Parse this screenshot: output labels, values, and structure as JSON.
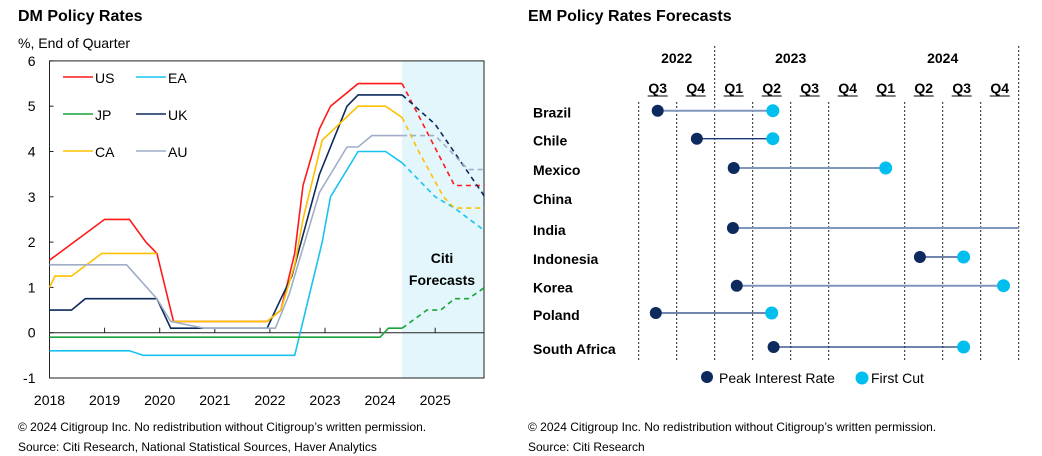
{
  "left": {
    "title": "DM Policy Rates",
    "unit_label": "%, End of Quarter",
    "forecast_label_1": "Citi",
    "forecast_label_2": "Forecasts",
    "copyright": "© 2024 Citigroup Inc. No redistribution without Citigroup’s written permission.",
    "source": "Source: Citi Research, National Statistical Sources, Haver Analytics"
  },
  "right": {
    "title": "EM Policy Rates Forecasts",
    "copyright": "© 2024 Citigroup Inc. No redistribution without Citigroup’s written permission.",
    "source": "Source: Citi Research"
  },
  "chart_data": [
    {
      "type": "line",
      "title": "DM Policy Rates",
      "ylabel": "%, End of Quarter",
      "xlim": [
        2018,
        2025.9
      ],
      "ylim": [
        -1,
        6
      ],
      "x_ticks": [
        "2018",
        "2019",
        "2020",
        "2021",
        "2022",
        "2023",
        "2024",
        "2025"
      ],
      "y_ticks": [
        "-1",
        "0",
        "1",
        "2",
        "3",
        "4",
        "5",
        "6"
      ],
      "forecast_start": 2024.4,
      "legend_position": "top-left",
      "series": [
        {
          "name": "US",
          "color": "#ff1a1a",
          "actual": [
            [
              2018,
              1.6
            ],
            [
              2019,
              2.5
            ],
            [
              2019.45,
              2.5
            ],
            [
              2019.75,
              2.0
            ],
            [
              2019.95,
              1.75
            ],
            [
              2020.25,
              0.25
            ],
            [
              2021.95,
              0.25
            ],
            [
              2022.2,
              0.5
            ],
            [
              2022.45,
              1.75
            ],
            [
              2022.6,
              3.25
            ],
            [
              2022.9,
              4.5
            ],
            [
              2023.1,
              5.0
            ],
            [
              2023.6,
              5.5
            ],
            [
              2024.4,
              5.5
            ]
          ],
          "forecast": [
            [
              2024.4,
              5.5
            ],
            [
              2025.35,
              3.25
            ],
            [
              2025.9,
              3.25
            ]
          ]
        },
        {
          "name": "EA",
          "color": "#19c3f0",
          "actual": [
            [
              2018,
              -0.4
            ],
            [
              2019.45,
              -0.4
            ],
            [
              2019.7,
              -0.5
            ],
            [
              2022.45,
              -0.5
            ],
            [
              2022.95,
              2.0
            ],
            [
              2023.1,
              3.0
            ],
            [
              2023.6,
              4.0
            ],
            [
              2024.1,
              4.0
            ],
            [
              2024.4,
              3.75
            ]
          ],
          "forecast": [
            [
              2024.4,
              3.75
            ],
            [
              2025.0,
              3.0
            ],
            [
              2025.35,
              2.75
            ],
            [
              2025.9,
              2.25
            ]
          ]
        },
        {
          "name": "JP",
          "color": "#1aa33a",
          "actual": [
            [
              2018,
              -0.1
            ],
            [
              2024.0,
              -0.1
            ],
            [
              2024.15,
              0.1
            ],
            [
              2024.4,
              0.1
            ]
          ],
          "forecast": [
            [
              2024.4,
              0.1
            ],
            [
              2024.85,
              0.5
            ],
            [
              2025.1,
              0.5
            ],
            [
              2025.35,
              0.75
            ],
            [
              2025.6,
              0.75
            ],
            [
              2025.9,
              1.0
            ]
          ]
        },
        {
          "name": "UK",
          "color": "#0d2a5e",
          "actual": [
            [
              2018,
              0.5
            ],
            [
              2018.4,
              0.5
            ],
            [
              2018.65,
              0.75
            ],
            [
              2019.95,
              0.75
            ],
            [
              2020.2,
              0.1
            ],
            [
              2021.95,
              0.1
            ],
            [
              2022.2,
              0.75
            ],
            [
              2022.4,
              1.25
            ],
            [
              2022.9,
              3.5
            ],
            [
              2023.4,
              5.0
            ],
            [
              2023.6,
              5.25
            ],
            [
              2024.4,
              5.25
            ]
          ],
          "forecast": [
            [
              2024.4,
              5.25
            ],
            [
              2025.0,
              4.6
            ],
            [
              2025.9,
              3.0
            ]
          ]
        },
        {
          "name": "CA",
          "color": "#ffc000",
          "actual": [
            [
              2018,
              1.0
            ],
            [
              2018.1,
              1.25
            ],
            [
              2018.4,
              1.25
            ],
            [
              2018.95,
              1.75
            ],
            [
              2019.95,
              1.75
            ]
          ],
          "actual2": [
            [
              2020.2,
              0.25
            ],
            [
              2021.95,
              0.25
            ],
            [
              2022.2,
              0.5
            ],
            [
              2022.45,
              1.5
            ],
            [
              2022.6,
              2.5
            ],
            [
              2022.95,
              4.25
            ],
            [
              2023.6,
              5.0
            ],
            [
              2024.1,
              5.0
            ],
            [
              2024.4,
              4.75
            ]
          ],
          "forecast": [
            [
              2024.4,
              4.75
            ],
            [
              2024.7,
              4.0
            ],
            [
              2025.15,
              3.0
            ],
            [
              2025.35,
              2.75
            ],
            [
              2025.9,
              2.75
            ]
          ]
        },
        {
          "name": "AU",
          "color": "#a0aec8",
          "actual": [
            [
              2018,
              1.5
            ],
            [
              2019.4,
              1.5
            ],
            [
              2019.95,
              0.75
            ],
            [
              2020.2,
              0.25
            ],
            [
              2020.8,
              0.1
            ],
            [
              2022.1,
              0.1
            ],
            [
              2022.35,
              0.85
            ],
            [
              2022.9,
              3.1
            ],
            [
              2023.4,
              4.1
            ],
            [
              2023.6,
              4.1
            ],
            [
              2023.85,
              4.35
            ],
            [
              2024.4,
              4.35
            ]
          ],
          "forecast": [
            [
              2024.4,
              4.35
            ],
            [
              2025.0,
              4.35
            ],
            [
              2025.6,
              3.6
            ],
            [
              2025.9,
              3.6
            ]
          ]
        }
      ]
    },
    {
      "type": "dumbbell",
      "title": "EM Policy Rates Forecasts",
      "years": [
        {
          "label": "2022",
          "center": 0.5
        },
        {
          "label": "2023",
          "center": 3.5
        },
        {
          "label": "2024",
          "center": 7.5
        }
      ],
      "quarters": [
        "Q3",
        "Q4",
        "Q1",
        "Q2",
        "Q3",
        "Q4",
        "Q1",
        "Q2",
        "Q3",
        "Q4"
      ],
      "legend": [
        "Peak Interest Rate",
        "First Cut"
      ],
      "colors": {
        "peak": "#0d2a5e",
        "cut": "#00bfef",
        "line_light": "#7f97bd",
        "line_dark": "#1a3a7a"
      },
      "rows": [
        {
          "country": "Brazil",
          "peak": 0,
          "cut": 3.03,
          "line": "light"
        },
        {
          "country": "Chile",
          "peak": 1.03,
          "cut": 3.03,
          "line": "dark"
        },
        {
          "country": "Mexico",
          "peak": 2.0,
          "cut": 6.0,
          "line": "light"
        },
        {
          "country": "China",
          "peak": null,
          "cut": null,
          "line": "light"
        },
        {
          "country": "India",
          "peak": 1.98,
          "cut": null,
          "line_end": 9.5,
          "line": "light"
        },
        {
          "country": "Indonesia",
          "peak": 6.9,
          "cut": 8.05,
          "line": "dark"
        },
        {
          "country": "Korea",
          "peak": 2.08,
          "cut": 9.1,
          "line": "light"
        },
        {
          "country": "Poland",
          "peak": -0.05,
          "cut": 3.0,
          "line": "dark"
        },
        {
          "country": "South Africa",
          "peak": 3.05,
          "cut": 8.05,
          "line": "dark"
        }
      ]
    }
  ]
}
